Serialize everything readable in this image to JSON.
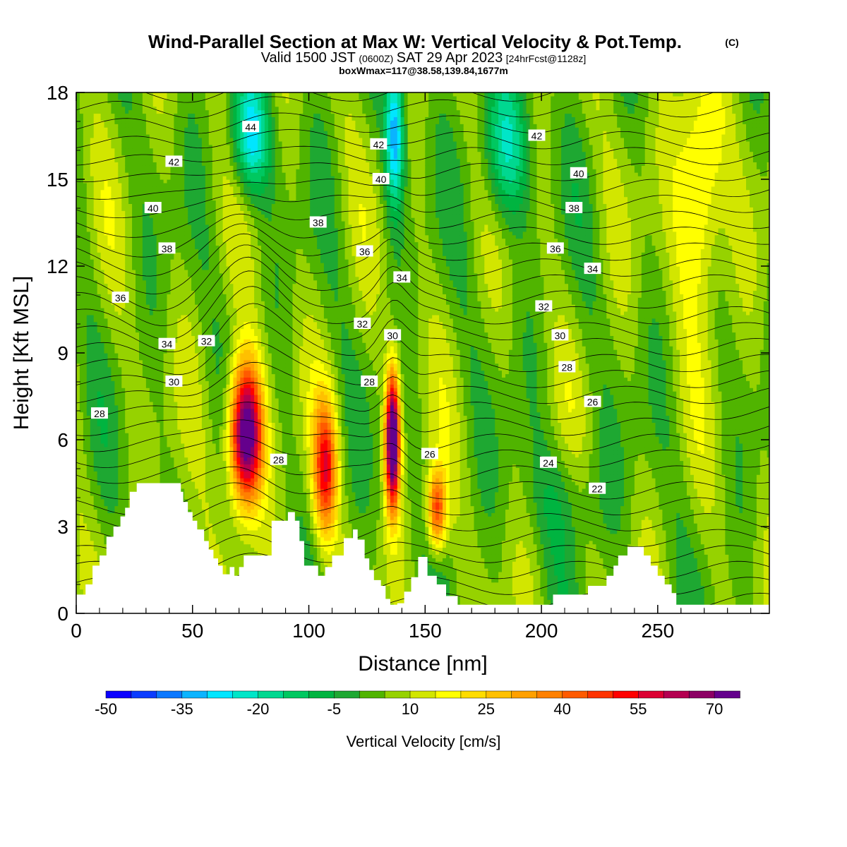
{
  "header": {
    "title": "Wind-Parallel Section at Max W: Vertical Velocity & Pot.Temp.",
    "copyright": "(C)",
    "valid_prefix": "Valid 1500 JST",
    "valid_utc": "(0600Z)",
    "valid_date": "SAT 29 Apr 2023",
    "forecast_info": "[24hrFcst@1128z]",
    "box_info": "boxWmax=117@38.58,139.84,1677m"
  },
  "chart_data": {
    "type": "heatmap",
    "xlabel": "Distance [nm]",
    "ylabel": "Height [Kft MSL]",
    "xlim": [
      0,
      298
    ],
    "ylim": [
      0,
      18
    ],
    "x_ticks": [
      0,
      50,
      100,
      150,
      200,
      250
    ],
    "y_ticks": [
      0,
      3,
      6,
      9,
      12,
      15,
      18
    ],
    "colorbar": {
      "label": "Vertical Velocity [cm/s]",
      "tick_values": [
        -50,
        -35,
        -20,
        -5,
        10,
        25,
        40,
        55,
        70
      ],
      "levels": [
        -50,
        -45,
        -40,
        -35,
        -30,
        -25,
        -20,
        -15,
        -10,
        -5,
        0,
        5,
        10,
        15,
        20,
        25,
        30,
        35,
        40,
        45,
        50,
        55,
        60,
        65,
        70,
        75
      ],
      "colors": [
        "#0a00ff",
        "#0a3cff",
        "#0a78ff",
        "#0ab4ff",
        "#00e6ff",
        "#00e6c8",
        "#00d890",
        "#00c860",
        "#00b440",
        "#1ea832",
        "#50b400",
        "#96d200",
        "#d2e600",
        "#ffff00",
        "#ffdc00",
        "#ffc000",
        "#ffa000",
        "#ff8000",
        "#ff5a00",
        "#ff3200",
        "#ff0000",
        "#dc0032",
        "#b40050",
        "#8c0064",
        "#64008c"
      ]
    },
    "terrain_kft": [
      [
        0,
        0.65
      ],
      [
        4,
        0.65
      ],
      [
        4,
        1
      ],
      [
        7,
        1
      ],
      [
        7,
        1.65
      ],
      [
        10,
        1.65
      ],
      [
        10,
        2
      ],
      [
        13,
        2
      ],
      [
        13,
        2.65
      ],
      [
        16,
        2.65
      ],
      [
        16,
        3
      ],
      [
        19,
        3
      ],
      [
        19,
        3.35
      ],
      [
        21,
        3.35
      ],
      [
        21,
        3.65
      ],
      [
        23,
        3.65
      ],
      [
        23,
        4.2
      ],
      [
        26,
        4.2
      ],
      [
        26,
        4.5
      ],
      [
        45,
        4.5
      ],
      [
        45,
        4.2
      ],
      [
        46,
        4.2
      ],
      [
        46,
        3.85
      ],
      [
        48,
        3.85
      ],
      [
        48,
        3.5
      ],
      [
        50,
        3.5
      ],
      [
        50,
        3.2
      ],
      [
        52,
        3.2
      ],
      [
        52,
        2.9
      ],
      [
        55,
        2.9
      ],
      [
        55,
        2.5
      ],
      [
        57,
        2.5
      ],
      [
        57,
        2.2
      ],
      [
        59,
        2.2
      ],
      [
        59,
        1.9
      ],
      [
        61,
        1.9
      ],
      [
        61,
        1.65
      ],
      [
        63,
        1.65
      ],
      [
        63,
        1.35
      ],
      [
        66,
        1.35
      ],
      [
        66,
        1.6
      ],
      [
        68,
        1.6
      ],
      [
        68,
        1.3
      ],
      [
        70,
        1.3
      ],
      [
        70,
        1.6
      ],
      [
        72,
        1.6
      ],
      [
        72,
        2
      ],
      [
        84,
        2
      ],
      [
        84,
        3.2
      ],
      [
        91,
        3.2
      ],
      [
        91,
        3.5
      ],
      [
        94,
        3.5
      ],
      [
        94,
        3.2
      ],
      [
        96,
        3.2
      ],
      [
        96,
        2.5
      ],
      [
        98,
        2.5
      ],
      [
        98,
        1.65
      ],
      [
        104,
        1.65
      ],
      [
        104,
        1.3
      ],
      [
        107,
        1.3
      ],
      [
        107,
        1.6
      ],
      [
        110,
        1.6
      ],
      [
        110,
        2
      ],
      [
        115,
        2
      ],
      [
        115,
        2.6
      ],
      [
        119,
        2.6
      ],
      [
        119,
        2.9
      ],
      [
        121,
        2.9
      ],
      [
        121,
        2.55
      ],
      [
        124,
        2.55
      ],
      [
        124,
        1.9
      ],
      [
        126,
        1.9
      ],
      [
        126,
        1.5
      ],
      [
        128,
        1.5
      ],
      [
        128,
        1.15
      ],
      [
        131,
        1.15
      ],
      [
        131,
        0.95
      ],
      [
        133,
        0.95
      ],
      [
        133,
        0.5
      ],
      [
        135,
        0.5
      ],
      [
        135,
        0.3
      ],
      [
        138,
        0.3
      ],
      [
        138,
        0.35
      ],
      [
        141,
        0.35
      ],
      [
        141,
        0.75
      ],
      [
        144,
        0.75
      ],
      [
        144,
        1.25
      ],
      [
        147,
        1.25
      ],
      [
        147,
        1.95
      ],
      [
        151,
        1.95
      ],
      [
        151,
        1.3
      ],
      [
        155,
        1.3
      ],
      [
        155,
        1
      ],
      [
        159,
        1
      ],
      [
        159,
        0.6
      ],
      [
        164,
        0.6
      ],
      [
        164,
        0.3
      ],
      [
        172,
        0.3
      ],
      [
        172,
        0.3
      ],
      [
        205,
        0.3
      ],
      [
        205,
        0.65
      ],
      [
        220,
        0.65
      ],
      [
        220,
        0.95
      ],
      [
        228,
        0.95
      ],
      [
        228,
        1.3
      ],
      [
        231,
        1.3
      ],
      [
        231,
        1.65
      ],
      [
        233,
        1.65
      ],
      [
        233,
        2
      ],
      [
        237,
        2
      ],
      [
        237,
        2.3
      ],
      [
        244,
        2.3
      ],
      [
        244,
        2
      ],
      [
        247,
        2
      ],
      [
        247,
        1.65
      ],
      [
        250,
        1.65
      ],
      [
        250,
        1.3
      ],
      [
        253,
        1.3
      ],
      [
        253,
        1
      ],
      [
        256,
        1
      ],
      [
        256,
        0.7
      ],
      [
        258,
        0.7
      ],
      [
        258,
        0.3
      ],
      [
        298,
        0.3
      ]
    ],
    "wv_hotspots": [
      {
        "x": 73,
        "z": 6.2,
        "w": 80,
        "sx": 7,
        "sz": 2.4
      },
      {
        "x": 107,
        "z": 5.0,
        "w": 45,
        "sx": 5,
        "sz": 2.3
      },
      {
        "x": 136,
        "z": 6.0,
        "w": 85,
        "sx": 3,
        "sz": 2.3
      },
      {
        "x": 155,
        "z": 3.6,
        "w": 42,
        "sx": 4,
        "sz": 1.4
      },
      {
        "x": 268,
        "z": 14.5,
        "w": 24,
        "sx": 10,
        "sz": 4
      },
      {
        "x": 75,
        "z": 16.5,
        "w": -32,
        "sx": 8,
        "sz": 2
      },
      {
        "x": 137,
        "z": 16.5,
        "w": -38,
        "sx": 4,
        "sz": 2.5
      },
      {
        "x": 185,
        "z": 16.0,
        "w": -25,
        "sx": 10,
        "sz": 2.5
      },
      {
        "x": 210,
        "z": 4.0,
        "w": -8,
        "sx": 18,
        "sz": 2.0
      }
    ],
    "contour_labels": [
      {
        "text": "44",
        "x": 75,
        "z": 16.8
      },
      {
        "text": "42",
        "x": 42,
        "z": 15.6
      },
      {
        "text": "42",
        "x": 130,
        "z": 16.2
      },
      {
        "text": "42",
        "x": 198,
        "z": 16.5
      },
      {
        "text": "40",
        "x": 33,
        "z": 14.0
      },
      {
        "text": "40",
        "x": 131,
        "z": 15.0
      },
      {
        "text": "40",
        "x": 216,
        "z": 15.2
      },
      {
        "text": "38",
        "x": 39,
        "z": 12.6
      },
      {
        "text": "38",
        "x": 104,
        "z": 13.5
      },
      {
        "text": "38",
        "x": 214,
        "z": 14.0
      },
      {
        "text": "36",
        "x": 19,
        "z": 10.9
      },
      {
        "text": "36",
        "x": 124,
        "z": 12.5
      },
      {
        "text": "36",
        "x": 206,
        "z": 12.6
      },
      {
        "text": "34",
        "x": 140,
        "z": 11.6
      },
      {
        "text": "34",
        "x": 222,
        "z": 11.9
      },
      {
        "text": "34",
        "x": 39,
        "z": 9.3
      },
      {
        "text": "32",
        "x": 56,
        "z": 9.4
      },
      {
        "text": "32",
        "x": 123,
        "z": 10.0
      },
      {
        "text": "32",
        "x": 201,
        "z": 10.6
      },
      {
        "text": "30",
        "x": 136,
        "z": 9.6
      },
      {
        "text": "30",
        "x": 208,
        "z": 9.6
      },
      {
        "text": "30",
        "x": 42,
        "z": 8.0
      },
      {
        "text": "28",
        "x": 10,
        "z": 6.9
      },
      {
        "text": "28",
        "x": 126,
        "z": 8.0
      },
      {
        "text": "28",
        "x": 211,
        "z": 8.5
      },
      {
        "text": "28",
        "x": 87,
        "z": 5.3
      },
      {
        "text": "26",
        "x": 152,
        "z": 5.5
      },
      {
        "text": "26",
        "x": 222,
        "z": 7.3
      },
      {
        "text": "24",
        "x": 203,
        "z": 5.2
      },
      {
        "text": "22",
        "x": 224,
        "z": 4.3
      }
    ]
  },
  "colors": {
    "frame": "#000000",
    "terrain": "#ffffff",
    "contour": "#000000",
    "background": "#ffffff"
  }
}
